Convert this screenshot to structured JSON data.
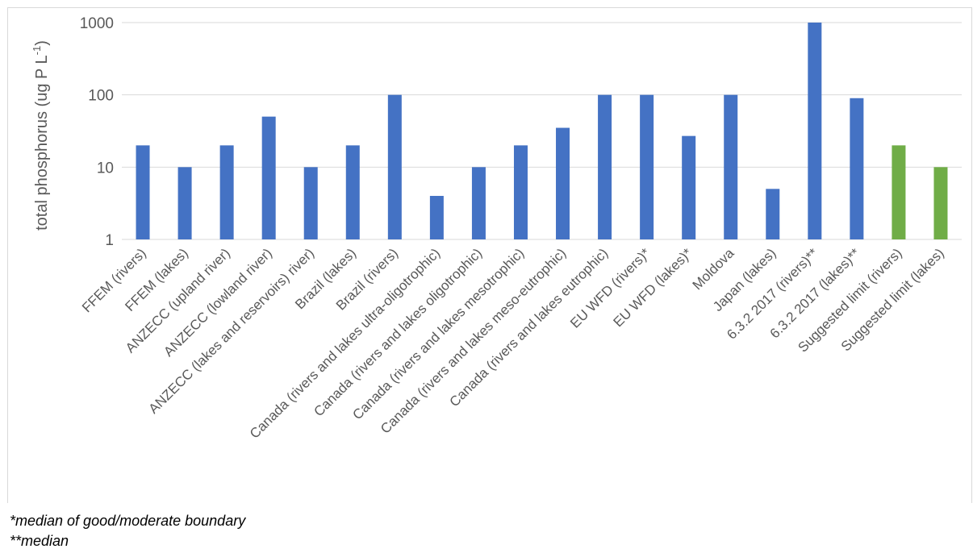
{
  "colors": {
    "standard_bar": "#4472c4",
    "suggested_bar": "#70ad47",
    "grid": "#d9d9d9",
    "text": "#595959"
  },
  "chart_data": {
    "type": "bar",
    "title": "",
    "xlabel": "",
    "ylabel": "total phosphorus (ug P L-1)",
    "ylabel_main": "total phosphorus (ug P L",
    "ylabel_sup": "-1",
    "ylabel_close": ")",
    "yscale": "log",
    "ylim": [
      1,
      1000
    ],
    "yticks": [
      "1",
      "10",
      "100",
      "1000"
    ],
    "grid": true,
    "legend": "none",
    "categories": [
      "FFEM (rivers)",
      "FFEM (lakes)",
      "ANZECC (upland river)",
      "ANZECC (lowland river)",
      "ANZECC (lakes and reservoirs) river)",
      "Brazil (lakes)",
      "Brazil (rivers)",
      "Canada (rivers and lakes ultra-oligotrophic)",
      "Canada (rivers and lakes oligotrophic)",
      "Canada (rivers and lakes mesotrophic)",
      "Canada (rivers and lakes meso-eutrophic)",
      "Canada (rivers and lakes eutrophic)",
      "EU WFD (rivers)*",
      "EU WFD (lakes)*",
      "Moldova",
      "Japan (lakes)",
      "6.3.2 2017 (rivers)**",
      "6.3.2 2017 (lakes)**",
      "Suggested limit (rivers)",
      "Suggested limit (lakes)"
    ],
    "values": [
      20,
      10,
      20,
      50,
      10,
      20,
      100,
      4,
      10,
      20,
      35,
      100,
      100,
      27,
      100,
      5,
      1000,
      90,
      20,
      10
    ],
    "bar_colors": [
      "#4472c4",
      "#4472c4",
      "#4472c4",
      "#4472c4",
      "#4472c4",
      "#4472c4",
      "#4472c4",
      "#4472c4",
      "#4472c4",
      "#4472c4",
      "#4472c4",
      "#4472c4",
      "#4472c4",
      "#4472c4",
      "#4472c4",
      "#4472c4",
      "#4472c4",
      "#4472c4",
      "#70ad47",
      "#70ad47"
    ]
  },
  "footnotes": {
    "note1": "*median of good/moderate boundary",
    "note2": "**median"
  }
}
